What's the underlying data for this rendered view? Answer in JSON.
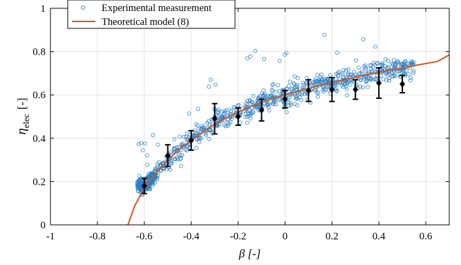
{
  "chart_data": {
    "type": "scatter",
    "xlim": [
      -1,
      0.7
    ],
    "ylim": [
      0,
      1
    ],
    "x_ticks": [
      -1,
      -0.8,
      -0.6,
      -0.4,
      -0.2,
      0,
      0.2,
      0.4,
      0.6
    ],
    "x_tick_labels": [
      "-1",
      "-0.8",
      "-0.6",
      "-0.4",
      "-0.2",
      "0",
      "0.2",
      "0.4",
      "0.6"
    ],
    "y_ticks": [
      0,
      0.2,
      0.4,
      0.6,
      0.8,
      1
    ],
    "y_tick_labels": [
      "0",
      "0.2",
      "0.4",
      "0.6",
      "0.8",
      "1"
    ],
    "xlabel": "β [-]",
    "ylabel_symbol": "η",
    "ylabel_subscript": "elec",
    "ylabel_unit": "[-]",
    "grid": true,
    "legend_position": "top-left",
    "legend": [
      {
        "label": "Experimental measurement",
        "marker": "open-circle",
        "color": "#2a7fc4"
      },
      {
        "label": "Theoretical model (8)",
        "marker": "line",
        "color": "#d4561c"
      }
    ],
    "series": [
      {
        "name": "Experimental measurement",
        "kind": "scatter-cloud",
        "color": "#2a7fc4",
        "point_count": 900,
        "x_range": [
          -0.63,
          0.55
        ],
        "y_range": [
          0.12,
          0.92
        ]
      },
      {
        "name": "Theoretical model (8)",
        "kind": "line",
        "color": "#d4561c",
        "x": [
          -0.67,
          -0.66,
          -0.65,
          -0.64,
          -0.63,
          -0.62,
          -0.6,
          -0.58,
          -0.55,
          -0.5,
          -0.45,
          -0.4,
          -0.35,
          -0.3,
          -0.25,
          -0.2,
          -0.15,
          -0.1,
          -0.05,
          0,
          0.05,
          0.1,
          0.15,
          0.2,
          0.25,
          0.3,
          0.35,
          0.4,
          0.45,
          0.5,
          0.55,
          0.6,
          0.65,
          0.7
        ],
        "y": [
          0.0,
          0.03,
          0.06,
          0.09,
          0.11,
          0.13,
          0.17,
          0.2,
          0.24,
          0.3,
          0.35,
          0.39,
          0.43,
          0.465,
          0.495,
          0.52,
          0.545,
          0.565,
          0.585,
          0.6,
          0.615,
          0.63,
          0.645,
          0.658,
          0.67,
          0.682,
          0.693,
          0.705,
          0.715,
          0.725,
          0.735,
          0.745,
          0.755,
          0.785
        ]
      },
      {
        "name": "Mean with error bars",
        "kind": "errorbar",
        "color": "#000000",
        "x": [
          -0.6,
          -0.5,
          -0.4,
          -0.3,
          -0.2,
          -0.1,
          0,
          0.1,
          0.2,
          0.3,
          0.4,
          0.5
        ],
        "y": [
          0.18,
          0.32,
          0.39,
          0.49,
          0.5,
          0.53,
          0.58,
          0.62,
          0.625,
          0.625,
          0.655,
          0.65
        ],
        "err": [
          0.035,
          0.05,
          0.045,
          0.07,
          0.04,
          0.05,
          0.04,
          0.05,
          0.055,
          0.045,
          0.07,
          0.04
        ]
      }
    ]
  }
}
